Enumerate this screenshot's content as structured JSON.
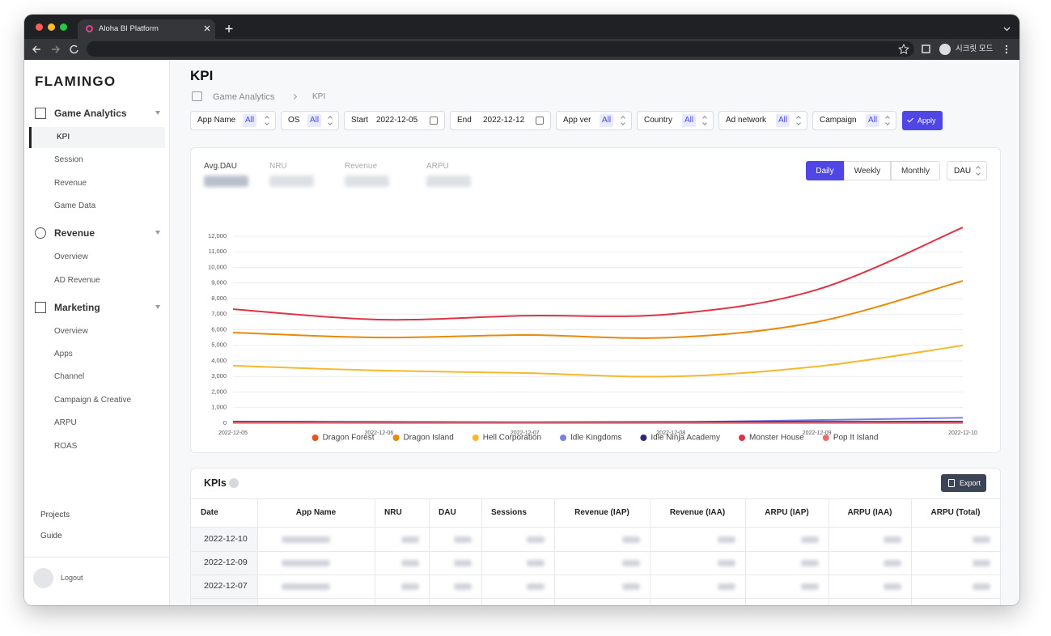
{
  "browser": {
    "tab_title": "Aloha BI Platform",
    "profile": "시크릿 모드"
  },
  "sidebar": {
    "logo": "FLAMINGO",
    "sections": [
      {
        "title": "Game Analytics",
        "items": [
          "KPI",
          "Session",
          "Revenue",
          "Game Data"
        ]
      },
      {
        "title": "Revenue",
        "items": [
          "Overview",
          "AD Revenue"
        ]
      },
      {
        "title": "Marketing",
        "items": [
          "Overview",
          "Apps",
          "Channel",
          "Campaign & Creative",
          "ARPU",
          "ROAS"
        ]
      }
    ],
    "footer": [
      "Projects",
      "Guide"
    ],
    "logout": "Logout"
  },
  "header": {
    "title": "KPI",
    "breadcrumb": [
      "Game Analytics",
      "KPI"
    ]
  },
  "filters": [
    {
      "label": "App Name",
      "value": "All"
    },
    {
      "label": "OS",
      "value": "All"
    },
    {
      "label": "Start",
      "value": "2022-12-05"
    },
    {
      "label": "End",
      "value": "2022-12-12"
    },
    {
      "label": "App ver",
      "value": "All"
    },
    {
      "label": "Country",
      "value": "All"
    },
    {
      "label": "Ad network",
      "value": "All"
    },
    {
      "label": "Campaign",
      "value": "All"
    }
  ],
  "apply": "Apply",
  "metrics": [
    "Avg.DAU",
    "NRU",
    "Revenue",
    "ARPU"
  ],
  "period_buttons": [
    "Daily",
    "Weekly",
    "Monthly"
  ],
  "metric_select": "DAU",
  "chart_data": {
    "type": "line",
    "x": [
      "2022-12-05",
      "2022-12-06",
      "2022-12-07",
      "2022-12-08",
      "2022-12-09",
      "2022-12-10"
    ],
    "ylim": [
      0,
      13000
    ],
    "yticks": [
      0,
      {
        "value": 1000,
        "label": "1,000"
      },
      {
        "value": 2000,
        "label": "2,000"
      },
      {
        "value": 3000,
        "label": "3,000"
      },
      {
        "value": 4000,
        "label": "4,000"
      },
      {
        "value": 5000,
        "label": "5,000"
      },
      {
        "value": 6000,
        "label": "6,000"
      },
      {
        "value": 7000,
        "label": "7,000"
      },
      {
        "value": 8000,
        "label": "8,000"
      },
      {
        "value": 9000,
        "label": "9,000"
      },
      {
        "value": 10000,
        "label": "10,000"
      },
      {
        "value": 11000,
        "label": "11,000"
      },
      {
        "value": 12000,
        "label": "12,000"
      }
    ],
    "grid": true,
    "series": [
      {
        "name": "Dragon Forest",
        "color": "#e8541e",
        "values": [
          20,
          20,
          20,
          20,
          20,
          20
        ]
      },
      {
        "name": "Dragon Island",
        "color": "#e8890c",
        "values": [
          5820,
          5500,
          5660,
          5500,
          6500,
          9140
        ]
      },
      {
        "name": "Hell Corporation",
        "color": "#f5b82e",
        "values": [
          3690,
          3380,
          3220,
          3000,
          3640,
          4990
        ]
      },
      {
        "name": "Idle Kingdoms",
        "color": "#7b7fe0",
        "values": [
          60,
          50,
          40,
          60,
          200,
          350
        ]
      },
      {
        "name": "Idle Ninja Academy",
        "color": "#2e2a7a",
        "values": [
          100,
          80,
          60,
          80,
          90,
          100
        ]
      },
      {
        "name": "Monster House",
        "color": "#dc3545",
        "values": [
          7320,
          6650,
          6900,
          7000,
          8570,
          12570
        ]
      },
      {
        "name": "Pop It Island",
        "color": "#ef6b6b",
        "values": [
          30,
          20,
          20,
          20,
          20,
          20
        ]
      }
    ]
  },
  "table": {
    "title": "KPIs",
    "export": "Export",
    "columns": [
      "Date",
      "App Name",
      "NRU",
      "DAU",
      "Sessions",
      "Revenue (IAP)",
      "Revenue (IAA)",
      "ARPU (IAP)",
      "ARPU (IAA)",
      "ARPU (Total)"
    ],
    "rows": [
      [
        "2022-12-10"
      ],
      [
        "2022-12-09"
      ],
      [
        "2022-12-07"
      ]
    ]
  }
}
